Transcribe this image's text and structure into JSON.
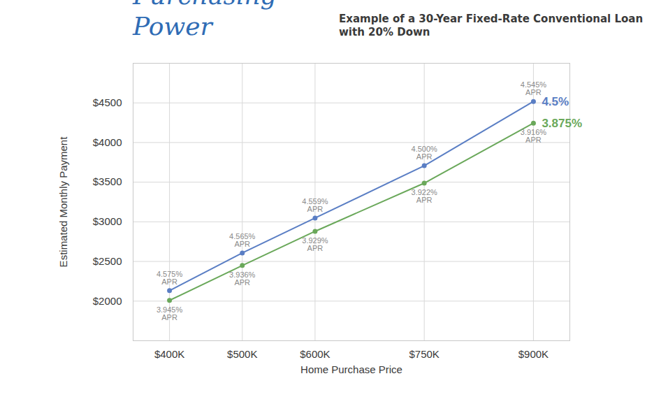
{
  "chart_data": {
    "type": "line",
    "title": "Purchasing Power",
    "subtitle": "Example of a 30-Year Fixed-Rate Conventional Loan with 20% Down",
    "x_label": "Home Purchase Price",
    "y_label": "Estimated Monthly Payment",
    "x": [
      400000,
      500000,
      600000,
      750000,
      900000
    ],
    "series": [
      {
        "name": "4.5%",
        "color": "#5a7ec4",
        "marker": "circle",
        "values": [
          2132,
          2607,
          3048,
          3708,
          4518
        ],
        "annotations": [
          "4.575% APR",
          "4.565% APR",
          "4.559% APR",
          "4.500% APR",
          "4.545% APR"
        ]
      },
      {
        "name": "3.875%",
        "color": "#6aa85a",
        "marker": "circle",
        "values": [
          2009,
          2449,
          2880,
          3488,
          4245
        ],
        "annotations": [
          "3.945% APR",
          "3.936% APR",
          "3.929% APR",
          "3.922% APR",
          "3.916% APR"
        ]
      }
    ],
    "xlim": [
      350000,
      950000
    ],
    "xticks": [
      {
        "value": 400000,
        "label": "$400K"
      },
      {
        "value": 500000,
        "label": "$500K"
      },
      {
        "value": 600000,
        "label": "$600K"
      },
      {
        "value": 750000,
        "label": "$750K"
      },
      {
        "value": 900000,
        "label": "$900K"
      }
    ],
    "ylim": [
      1500,
      5000
    ],
    "yticks": [
      {
        "value": 2000,
        "label": "$2000"
      },
      {
        "value": 2500,
        "label": "$2500"
      },
      {
        "value": 3000,
        "label": "$3000"
      },
      {
        "value": 3500,
        "label": "$3500"
      },
      {
        "value": 4000,
        "label": "$4000"
      },
      {
        "value": 4500,
        "label": "$4500"
      }
    ],
    "grid": true
  }
}
